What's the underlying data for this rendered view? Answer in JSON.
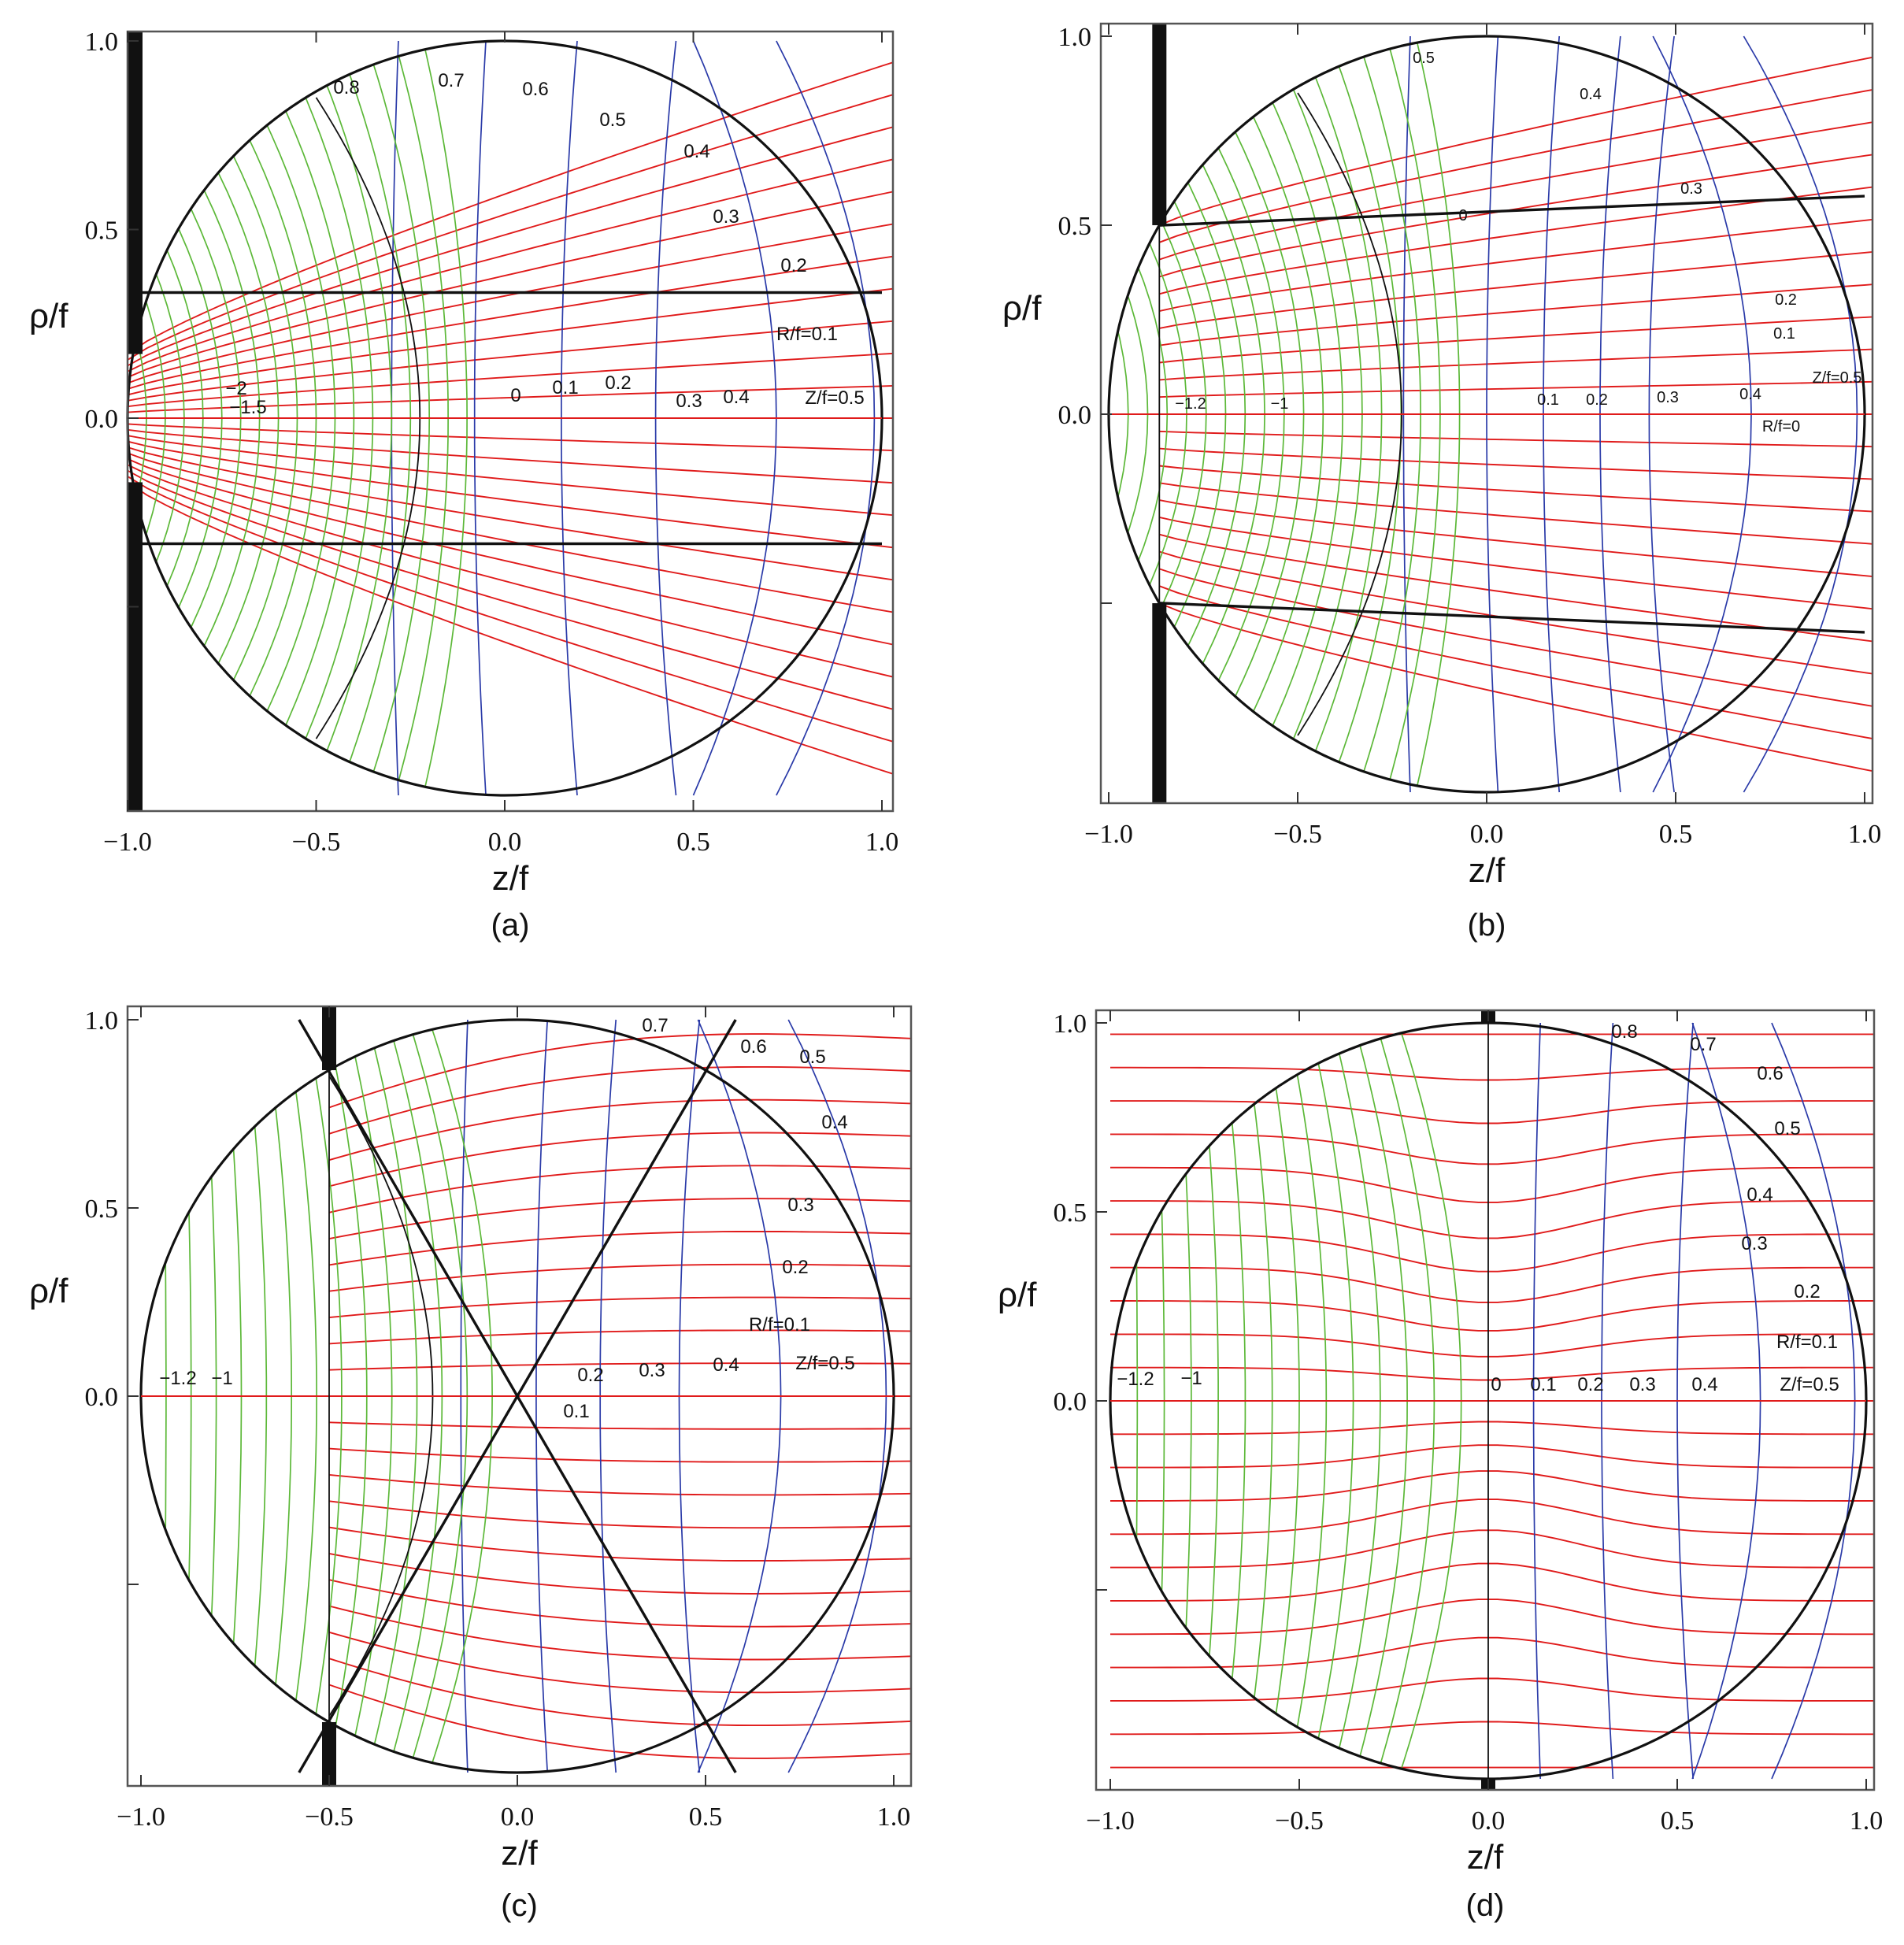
{
  "panels": [
    {
      "id": "a",
      "caption": "(a)",
      "xlabel": "z/f",
      "ylabel": "ρ/f",
      "xticks": [
        "−1.0",
        "−0.5",
        "0.0",
        "0.5",
        "1.0"
      ],
      "yticks": [
        "1.0",
        "0.5",
        "0.0"
      ],
      "annotations": [
        "0.8",
        "0.7",
        "0.6",
        "0.5",
        "0.4",
        "0.3",
        "0.2",
        "R/f=0.1",
        "−2",
        "−1.5",
        "0",
        "0.1",
        "0.2",
        "0.3",
        "0.4",
        "Z/f=0.5"
      ]
    },
    {
      "id": "b",
      "caption": "(b)",
      "xlabel": "z/f",
      "ylabel": "ρ/f",
      "xticks": [
        "−1.0",
        "−0.5",
        "0.0",
        "0.5",
        "1.0"
      ],
      "yticks": [
        "1.0",
        "0.5",
        "0.0"
      ],
      "annotations": [
        "0.5",
        "0.4",
        "0.3",
        "0",
        "0.2",
        "0.1",
        "Z/f=0.5",
        "−1.2",
        "−1",
        "0.1",
        "0.2",
        "0.3",
        "0.4",
        "R/f=0"
      ]
    },
    {
      "id": "c",
      "caption": "(c)",
      "xlabel": "z/f",
      "ylabel": "ρ/f",
      "xticks": [
        "−1.0",
        "−0.5",
        "0.0",
        "0.5",
        "1.0"
      ],
      "yticks": [
        "1.0",
        "0.5",
        "0.0"
      ],
      "annotations": [
        "0.7",
        "0.6",
        "0.5",
        "0.4",
        "0.3",
        "0.2",
        "R/f=0.1",
        "−1.2",
        "−1",
        "0.2",
        "0.3",
        "0.4",
        "Z/f=0.5",
        "0.1"
      ]
    },
    {
      "id": "d",
      "caption": "(d)",
      "xlabel": "z/f",
      "ylabel": "ρ/f",
      "xticks": [
        "−1.0",
        "−0.5",
        "0.0",
        "0.5",
        "1.0"
      ],
      "yticks": [
        "1.0",
        "0.5",
        "0.0"
      ],
      "annotations": [
        "0.8",
        "0.7",
        "0.6",
        "0.5",
        "0.4",
        "0.3",
        "0.2",
        "R/f=0.1",
        "−1.2",
        "−1",
        "0",
        "0.1",
        "0.2",
        "0.3",
        "0.4",
        "Z/f=0.5"
      ]
    }
  ],
  "colors": {
    "constant_R_curves": "#e01b1b",
    "constant_Z_curves": "#2a3aa8",
    "inner_region_curves": "#5cb838",
    "outline": "#111111"
  },
  "panel_params": {
    "a": {
      "screen_z": -1.0,
      "cone_slope": 0.333
    },
    "b": {
      "screen_z": -0.866,
      "cone_slope": 0.577
    },
    "c": {
      "screen_z": -0.5,
      "cone_slope": 1.732
    },
    "d": {
      "screen_z": 0.0,
      "cone_slope": null
    }
  }
}
